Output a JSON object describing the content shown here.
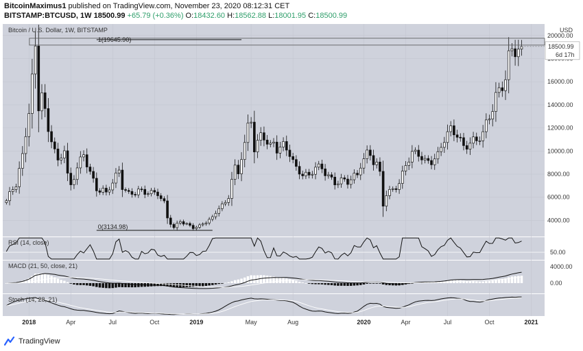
{
  "header": {
    "author": "BitcoinMaximus1",
    "published": "published on TradingView.com, November 23, 2020 08:12:31 CET",
    "symbol": "BITSTAMP:BTCUSD, 1W",
    "last": "18500.99",
    "change": "+65.79 (+0.36%)",
    "o_label": "O:",
    "o_value": "18432.60",
    "h_label": "H:",
    "h_value": "18562.88",
    "l_label": "L:",
    "l_value": "18001.95",
    "c_label": "C:",
    "c_value": "18500.99"
  },
  "footer": {
    "brand": "TradingView"
  },
  "colors": {
    "pane_bg": "#cfd2dc",
    "axis_bg": "#ffffff",
    "candle_up": "#ffffff",
    "candle_down": "#111111",
    "grid": "#c3c6d0",
    "line": "#111111",
    "accent": "#2e9e6a"
  },
  "chart_data": {
    "type": "candlestick",
    "title": "Bitcoin / U.S. Dollar, 1W, BITSTAMP",
    "currency": "USD",
    "price_axis": {
      "ylim": [
        2600,
        21000
      ],
      "ticks": [
        4000,
        6000,
        8000,
        10000,
        12000,
        14000,
        16000,
        18000,
        20000
      ]
    },
    "x_ticks": [
      {
        "label": "2018",
        "week": 7,
        "bold": true
      },
      {
        "label": "Apr",
        "week": 20,
        "bold": false
      },
      {
        "label": "Jul",
        "week": 33,
        "bold": false
      },
      {
        "label": "Oct",
        "week": 46,
        "bold": false
      },
      {
        "label": "2019",
        "week": 59,
        "bold": true
      },
      {
        "label": "May",
        "week": 76,
        "bold": false
      },
      {
        "label": "Aug",
        "week": 89,
        "bold": false
      },
      {
        "label": "2020",
        "week": 111,
        "bold": true
      },
      {
        "label": "Apr",
        "week": 124,
        "bold": false
      },
      {
        "label": "Jul",
        "week": 137,
        "bold": false
      },
      {
        "label": "Oct",
        "week": 150,
        "bold": false
      },
      {
        "label": "2021",
        "week": 163,
        "bold": true
      }
    ],
    "weeks_visible": 167,
    "last_price_label": "18500.99",
    "countdown_label": "6d 17h",
    "fib_levels": [
      {
        "label": "1(19645.90)",
        "value": 19645.9
      },
      {
        "label": "0(3134.98)",
        "value": 3134.98
      }
    ],
    "anchors": {
      "week": [
        0,
        1,
        3,
        5,
        7,
        8,
        9,
        10,
        11,
        12,
        13,
        14,
        16,
        18,
        19,
        20,
        22,
        24,
        26,
        27,
        28,
        30,
        31,
        33,
        35,
        36,
        38,
        40,
        41,
        43,
        45,
        47,
        49,
        50,
        52,
        53,
        54,
        55,
        56,
        58,
        60,
        62,
        64,
        66,
        68,
        69,
        70,
        71,
        72,
        73,
        74,
        75,
        76,
        77,
        78,
        79,
        80,
        82,
        83,
        84,
        86,
        88,
        90,
        92,
        94,
        96,
        98,
        100,
        102,
        104,
        106,
        108,
        109,
        110,
        112,
        113,
        114,
        115,
        116,
        117,
        118,
        120,
        122,
        124,
        126,
        128,
        130,
        132,
        134,
        136,
        138,
        140,
        142,
        144,
        146,
        148,
        150,
        152,
        154,
        155,
        156,
        157,
        158,
        159,
        160
      ],
      "close": [
        5700,
        6200,
        7000,
        9500,
        13800,
        16500,
        19100,
        14000,
        15000,
        13000,
        11500,
        11000,
        9000,
        10500,
        8000,
        7000,
        8500,
        9500,
        8200,
        7500,
        6800,
        6700,
        6300,
        7200,
        8200,
        6900,
        6400,
        6500,
        6600,
        6300,
        6300,
        6400,
        5600,
        4300,
        3300,
        3600,
        3900,
        3700,
        3600,
        3450,
        3550,
        3900,
        4100,
        5100,
        5500,
        6200,
        7800,
        8600,
        8000,
        9500,
        10500,
        11800,
        12500,
        10200,
        10800,
        11500,
        11500,
        10400,
        10600,
        10000,
        10300,
        9900,
        8600,
        8100,
        7700,
        8500,
        8500,
        8000,
        7300,
        7400,
        7200,
        7800,
        8000,
        9000,
        9900,
        9800,
        9000,
        8700,
        7900,
        5300,
        6200,
        6800,
        7300,
        8800,
        9600,
        9700,
        9200,
        9300,
        9600,
        10900,
        11700,
        11600,
        10500,
        10800,
        10700,
        11400,
        13100,
        15000,
        15800,
        16300,
        17800,
        18400,
        18500,
        18600,
        18500
      ]
    },
    "rsi": {
      "label": "RSI (14, close)",
      "level_label": "50.00",
      "level": 50,
      "ylim": [
        30,
        90
      ]
    },
    "macd": {
      "label": "MACD (21, 50, close, 21)",
      "ticks": [
        4000,
        0
      ],
      "ylim": [
        -2500,
        5500
      ]
    },
    "stoch": {
      "label": "Stoch (14, 28, 21)",
      "ylim": [
        0,
        100
      ]
    }
  }
}
